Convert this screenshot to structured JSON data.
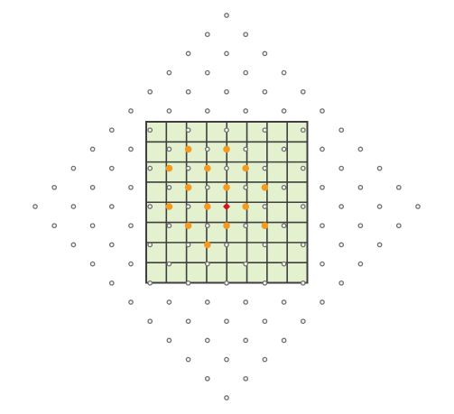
{
  "colors": {
    "background": "#ffffff",
    "grid_fill": "#e4f1cf",
    "grid_line": "#3f3f3f",
    "lattice_point_stroke": "#6f6f6f",
    "lattice_point_fill": "#f7f7f7",
    "highlight_point": "#f49a1e",
    "center_point": "#d0151d"
  },
  "grid": {
    "columns": 8,
    "rows": 8
  },
  "lattice": {
    "shape": "diamond",
    "radius": 10
  },
  "center": {
    "x": 0,
    "y": 0
  },
  "highlighted_points": [
    [
      -2,
      3
    ],
    [
      0,
      3
    ],
    [
      -3,
      2
    ],
    [
      -1,
      2
    ],
    [
      1,
      2
    ],
    [
      -2,
      1
    ],
    [
      0,
      1
    ],
    [
      2,
      1
    ],
    [
      -3,
      0
    ],
    [
      -1,
      0
    ],
    [
      1,
      0
    ],
    [
      -2,
      -1
    ],
    [
      0,
      -1
    ],
    [
      2,
      -1
    ],
    [
      -1,
      -2
    ]
  ]
}
